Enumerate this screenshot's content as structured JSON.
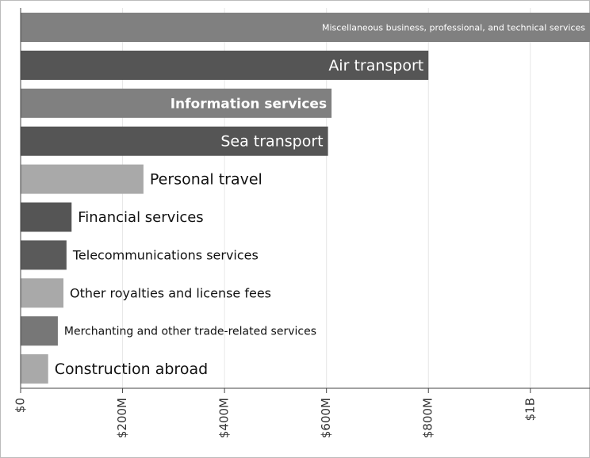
{
  "chart_data": {
    "type": "hbar",
    "categories": [
      "Miscellaneous business, professional, and technical services",
      "Air transport",
      "Information services",
      "Sea transport",
      "Personal travel",
      "Financial services",
      "Telecommunications services",
      "Other royalties and license fees",
      "Merchanting and other trade-related services",
      "Construction abroad"
    ],
    "values": [
      1200,
      800,
      610,
      603,
      241,
      100,
      90,
      84,
      73,
      54
    ],
    "colors": [
      "#808080",
      "#555555",
      "#808080",
      "#555555",
      "#a9a9a9",
      "#555555",
      "#5a5a5a",
      "#a9a9a9",
      "#777777",
      "#a9a9a9"
    ],
    "xlim": [
      0,
      1117
    ],
    "xticks": [
      {
        "value": 0,
        "label": "$0"
      },
      {
        "value": 200,
        "label": "$200M"
      },
      {
        "value": 400,
        "label": "$400M"
      },
      {
        "value": 600,
        "label": "$600M"
      },
      {
        "value": 800,
        "label": "$800M"
      },
      {
        "value": 1000,
        "label": "$1B"
      }
    ],
    "grid": true
  }
}
